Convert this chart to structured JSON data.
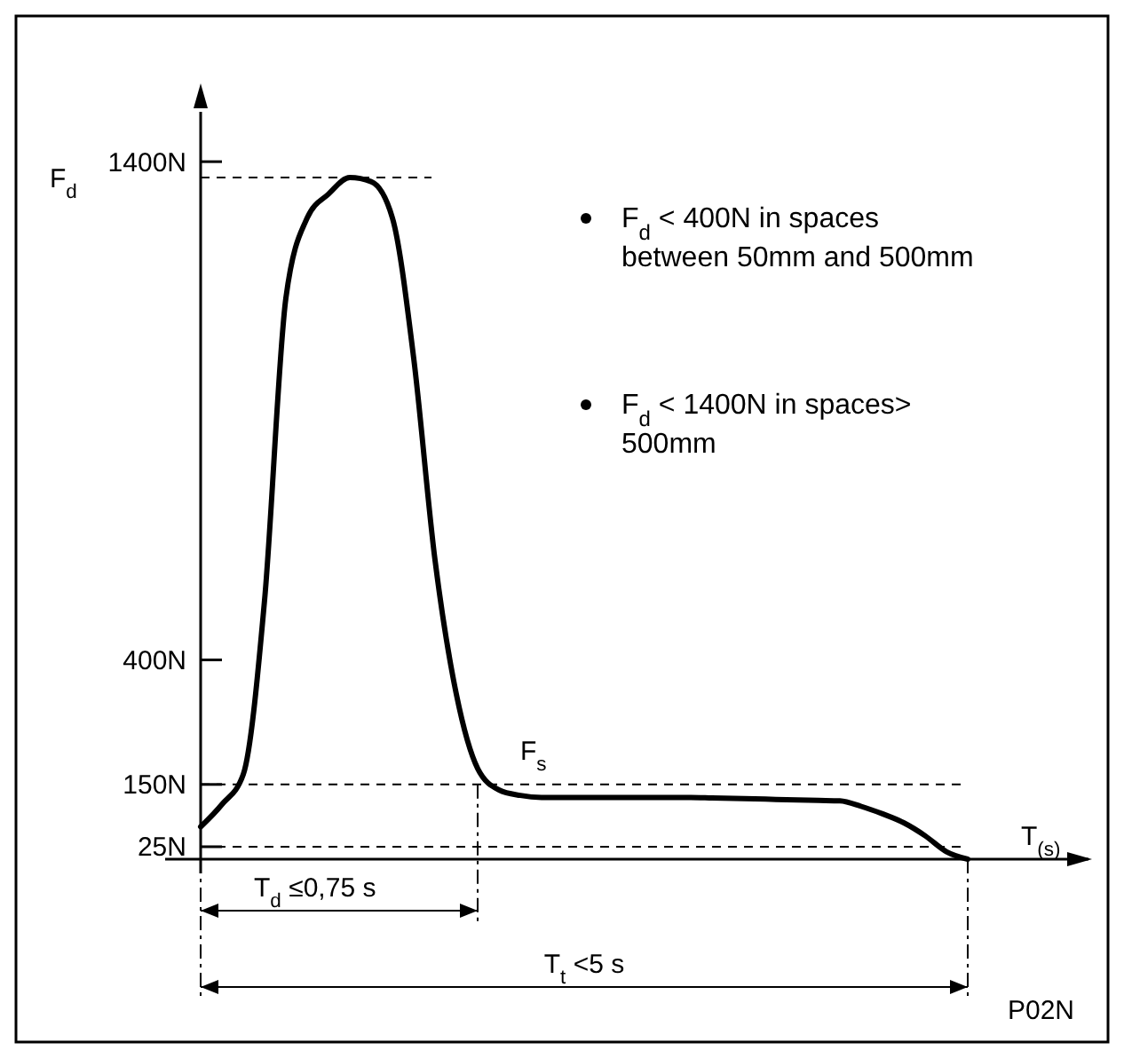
{
  "chart_data": {
    "type": "line",
    "xlabel": "T$_{(s)}$",
    "categories": [
      null,
      null,
      null,
      null,
      null,
      null,
      null,
      null,
      null,
      null,
      null,
      null,
      null,
      null,
      null,
      null,
      null,
      null,
      null,
      null,
      null,
      null,
      null,
      null,
      null,
      null,
      null,
      null,
      null,
      null,
      null,
      null,
      null,
      null,
      null,
      null,
      null
    ],
    "series": [
      {
        "color": "#000000",
        "values": [
          65,
          110,
          170,
          520,
          1126,
          1287,
          1335,
          1368,
          1360,
          1287,
          1005,
          600,
          331,
          182,
          139,
          128,
          124,
          124,
          124,
          124,
          124,
          124,
          124,
          124,
          123,
          122,
          121,
          120,
          119,
          118,
          117,
          106,
          91,
          73,
          47,
          15,
          0
        ]
      }
    ],
    "ylim": [
      0,
      1500
    ],
    "yticks": [
      {
        "value": 25,
        "label": "25N"
      },
      {
        "value": 150,
        "label": "150N"
      },
      {
        "value": 400,
        "label": "400N"
      },
      {
        "value": 1400,
        "label": "1400N"
      }
    ],
    "ref_lines": [
      {
        "axis": "y",
        "value": 1368,
        "label": "F$_{d}$",
        "line_style": "dashed"
      },
      {
        "axis": "y",
        "value": 150,
        "line_style": "dashed"
      },
      {
        "axis": "y",
        "value": 25,
        "line_style": "dashed"
      }
    ],
    "annotations": [
      "F$_{d}$ < 400N in spaces between 50mm and 500mm",
      "F$_{d}$ < 1400N in spaces> 500mm",
      {
        "text": "F$_{s}$",
        "y": 150
      },
      "T$_{d}$ ≤0,75 s",
      "T$_{t}$ <5 s",
      "P02N"
    ],
    "grid": false,
    "line_style": "solid"
  }
}
